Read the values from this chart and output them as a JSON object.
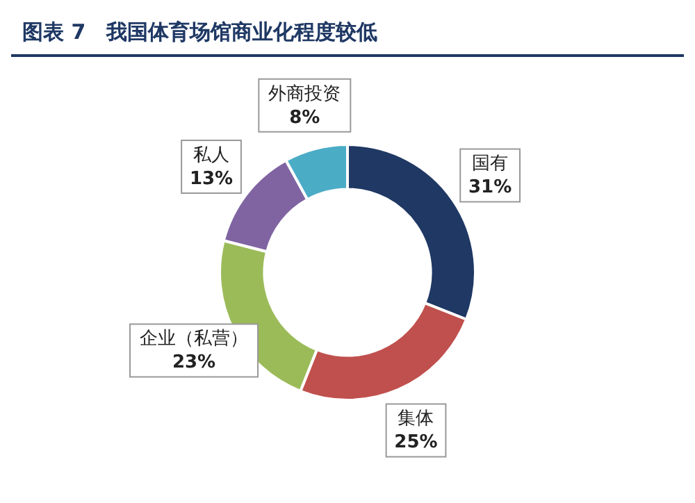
{
  "chart_data": {
    "type": "donut",
    "title": "图表 7　我国体育场馆商业化程度较低",
    "categories": [
      "国有",
      "集体",
      "企业（私营）",
      "私人",
      "外商投资"
    ],
    "values": [
      31,
      25,
      23,
      13,
      8
    ],
    "value_labels": [
      "31%",
      "25%",
      "23%",
      "13%",
      "8%"
    ],
    "colors": [
      "#1f3864",
      "#c0504d",
      "#9bbb59",
      "#8064a2",
      "#4bacc6"
    ],
    "legend": false
  }
}
